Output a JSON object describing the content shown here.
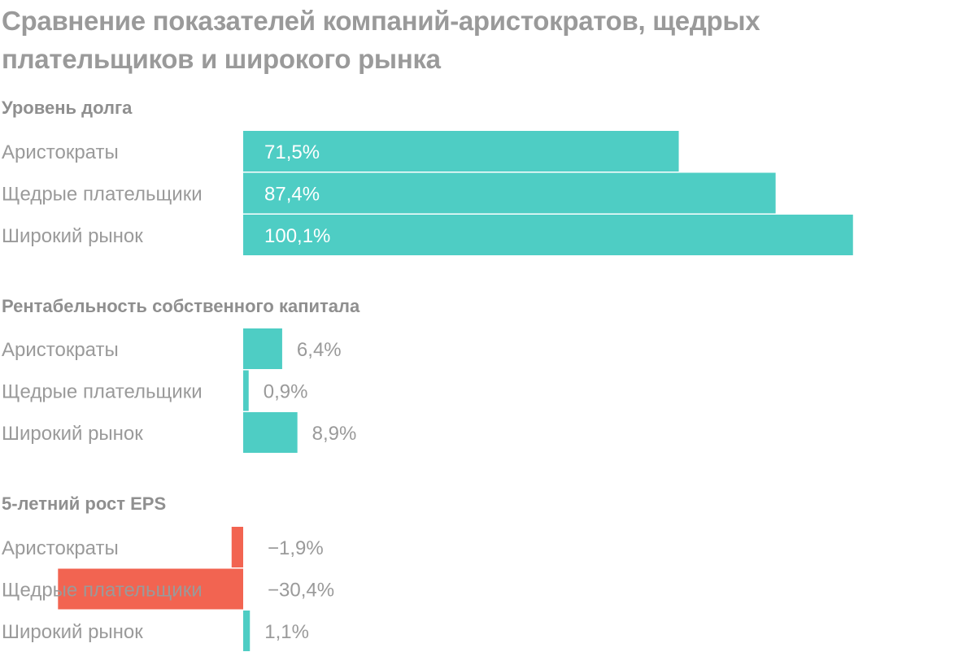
{
  "title": "Сравнение показателей компаний-аристократов, щедрых плательщиков и широкого рынка",
  "colors": {
    "positive": "#4ecdc4",
    "negative": "#f26451",
    "text": "#9a9a9a",
    "background": "#ffffff"
  },
  "chart_data": [
    {
      "type": "bar",
      "orientation": "horizontal",
      "title": "Уровень долга",
      "categories": [
        "Аристократы",
        "Щедрые плательщики",
        "Широкий рынок"
      ],
      "values": [
        71.5,
        87.4,
        100.1
      ],
      "value_labels": [
        "71,5%",
        "87,4%",
        "100,1%"
      ],
      "label_position": "inside"
    },
    {
      "type": "bar",
      "orientation": "horizontal",
      "title": "Рентабельность собственного капитала",
      "categories": [
        "Аристократы",
        "Щедрые плательщики",
        "Широкий рынок"
      ],
      "values": [
        6.4,
        0.9,
        8.9
      ],
      "value_labels": [
        "6,4%",
        "0,9%",
        "8,9%"
      ],
      "label_position": "outside"
    },
    {
      "type": "bar",
      "orientation": "horizontal",
      "title": "5-летний рост EPS",
      "categories": [
        "Аристократы",
        "Щедрые плательщики",
        "Широкий рынок"
      ],
      "values": [
        -1.9,
        -30.4,
        1.1
      ],
      "value_labels": [
        "−1,9%",
        "−30,4%",
        "1,1%"
      ],
      "label_position": "outside"
    }
  ]
}
